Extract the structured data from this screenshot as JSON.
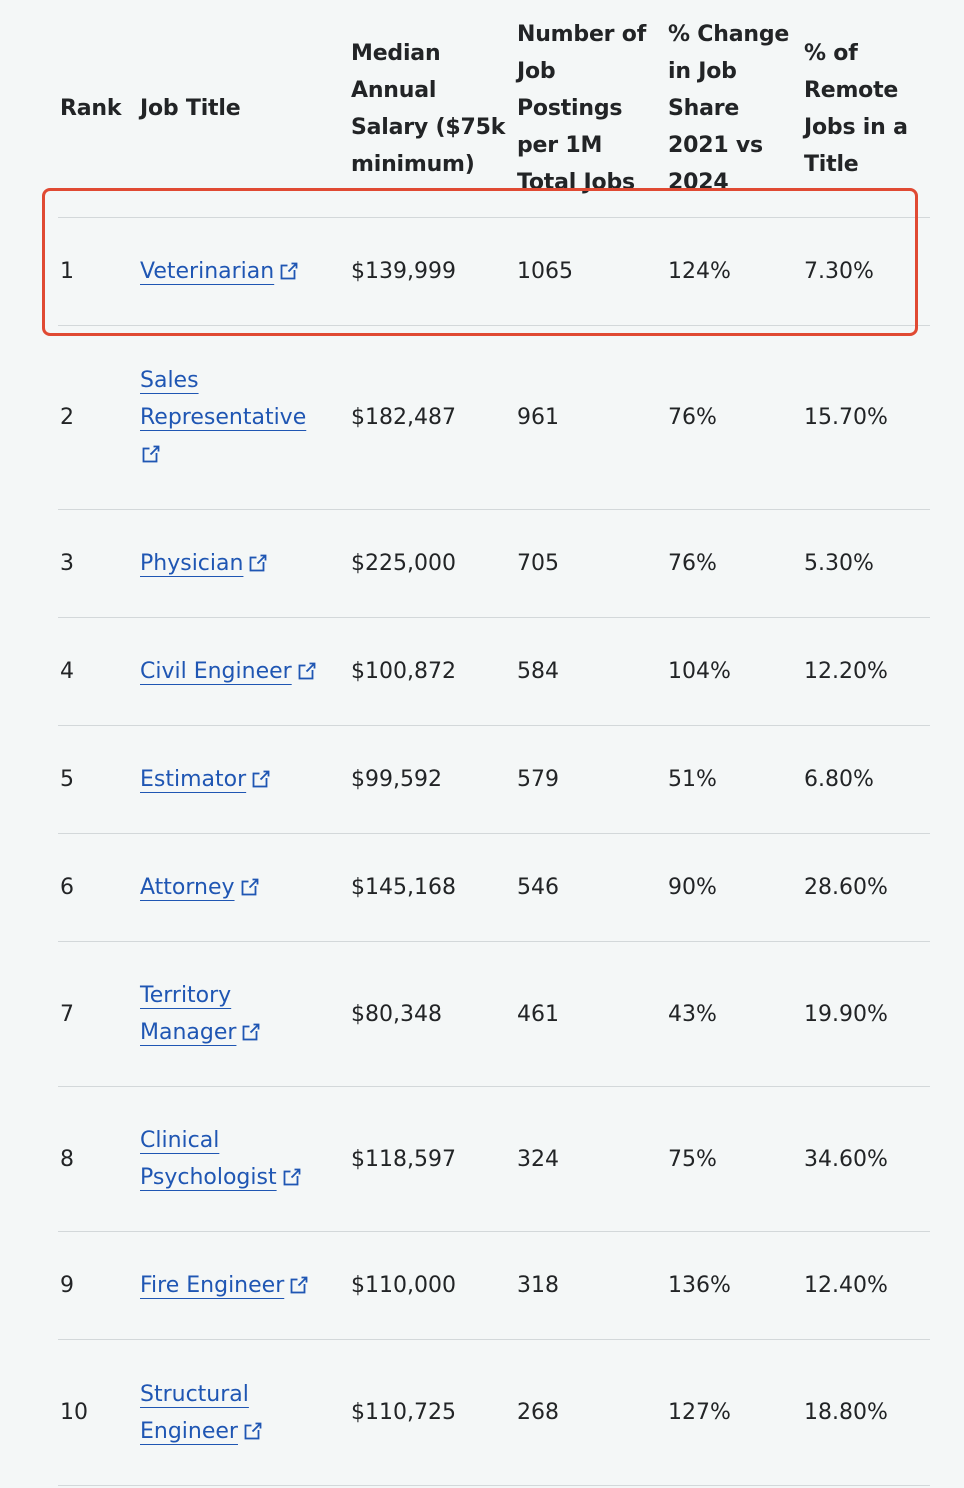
{
  "table": {
    "headers": {
      "rank": "Rank",
      "job_title": "Job Title",
      "salary": [
        "Median",
        "Annual",
        "Salary ($75k",
        "minimum)"
      ],
      "postings": [
        "Number of",
        "Job",
        "Postings",
        "per 1M",
        "Total Jobs"
      ],
      "change": [
        "% Change",
        "in Job",
        "Share",
        "2021 vs",
        "2024"
      ],
      "remote": [
        "% of",
        "Remote",
        "Jobs in a",
        "Title"
      ]
    },
    "rows": [
      {
        "rank": "1",
        "title_lines": [
          "Veterinarian"
        ],
        "salary": "$139,999",
        "postings": "1065",
        "change": "124%",
        "remote": "7.30%"
      },
      {
        "rank": "2",
        "title_lines": [
          "Sales",
          "Representative",
          ""
        ],
        "salary": "$182,487",
        "postings": "961",
        "change": "76%",
        "remote": "15.70%"
      },
      {
        "rank": "3",
        "title_lines": [
          "Physician"
        ],
        "salary": "$225,000",
        "postings": "705",
        "change": "76%",
        "remote": "5.30%"
      },
      {
        "rank": "4",
        "title_lines": [
          "Civil Engineer"
        ],
        "salary": "$100,872",
        "postings": "584",
        "change": "104%",
        "remote": "12.20%"
      },
      {
        "rank": "5",
        "title_lines": [
          "Estimator"
        ],
        "salary": "$99,592",
        "postings": "579",
        "change": "51%",
        "remote": "6.80%"
      },
      {
        "rank": "6",
        "title_lines": [
          "Attorney"
        ],
        "salary": "$145,168",
        "postings": "546",
        "change": "90%",
        "remote": "28.60%"
      },
      {
        "rank": "7",
        "title_lines": [
          "Territory",
          "Manager"
        ],
        "salary": "$80,348",
        "postings": "461",
        "change": "43%",
        "remote": "19.90%"
      },
      {
        "rank": "8",
        "title_lines": [
          "Clinical",
          "Psychologist"
        ],
        "salary": "$118,597",
        "postings": "324",
        "change": "75%",
        "remote": "34.60%"
      },
      {
        "rank": "9",
        "title_lines": [
          "Fire Engineer"
        ],
        "salary": "$110,000",
        "postings": "318",
        "change": "136%",
        "remote": "12.40%"
      },
      {
        "rank": "10",
        "title_lines": [
          "Structural",
          "Engineer"
        ],
        "salary": "$110,725",
        "postings": "268",
        "change": "127%",
        "remote": "18.80%"
      }
    ]
  },
  "icons": {
    "external_link": "external-link-icon"
  },
  "colors": {
    "link": "#1f56b3",
    "highlight_border": "#e04a33",
    "background": "#f4f7f7",
    "divider": "#d3d8da"
  },
  "highlighted_row_rank": "1"
}
